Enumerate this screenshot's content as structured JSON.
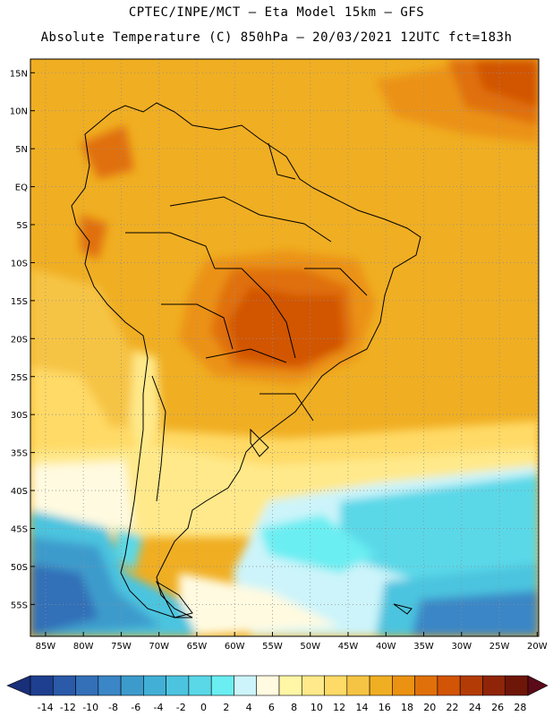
{
  "title_line1": "CPTEC/INPE/MCT –  Eta Model 15km – GFS",
  "title_line2": "Absolute Temperature (C) 850hPa – 20/03/2021 12UTC fct=183h",
  "lat_labels": [
    "15N",
    "10N",
    "5N",
    "EQ",
    "5S",
    "10S",
    "15S",
    "20S",
    "25S",
    "30S",
    "35S",
    "40S",
    "45S",
    "50S",
    "55S"
  ],
  "lat_values": [
    15,
    10,
    5,
    0,
    -5,
    -10,
    -15,
    -20,
    -25,
    -30,
    -35,
    -40,
    -45,
    -50,
    -55
  ],
  "lon_labels": [
    "85W",
    "80W",
    "75W",
    "70W",
    "65W",
    "60W",
    "55W",
    "50W",
    "45W",
    "40W",
    "35W",
    "30W",
    "25W",
    "20W"
  ],
  "lon_values": [
    -85,
    -80,
    -75,
    -70,
    -65,
    -60,
    -55,
    -50,
    -45,
    -40,
    -35,
    -30,
    -25,
    -20
  ],
  "colorbar": {
    "labels": [
      "-14",
      "-12",
      "-10",
      "-8",
      "-6",
      "-4",
      "-2",
      "0",
      "2",
      "4",
      "6",
      "8",
      "10",
      "12",
      "14",
      "16",
      "18",
      "20",
      "22",
      "24",
      "26",
      "28"
    ],
    "colors": [
      "#1e3f8f",
      "#2a5aa8",
      "#3370b8",
      "#3a86c6",
      "#3d9bcc",
      "#42afd6",
      "#4cc4df",
      "#5ad8e8",
      "#6aeef2",
      "#ccf4fa",
      "#fffae0",
      "#fff6a6",
      "#ffe98a",
      "#ffda66",
      "#f6c444",
      "#f0ae22",
      "#eb9212",
      "#e0700a",
      "#d25406",
      "#b33c06",
      "#8f2408",
      "#6e1608"
    ],
    "low_color": "#1a2f7a",
    "high_color": "#5a0a18"
  }
}
